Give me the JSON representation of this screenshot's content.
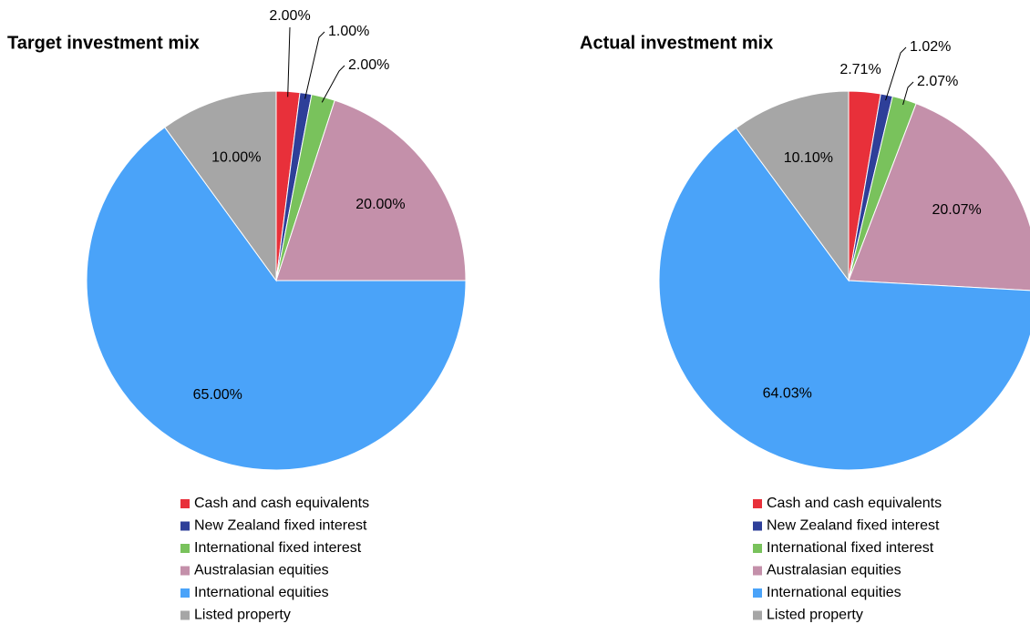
{
  "chart_data": [
    {
      "type": "pie",
      "title": "Target investment mix",
      "categories": [
        "Cash and cash equivalents",
        "New Zealand fixed interest",
        "International fixed interest",
        "Australasian equities",
        "International equities",
        "Listed property"
      ],
      "values": [
        2,
        1,
        2,
        20,
        65,
        10
      ],
      "value_labels": [
        "2.00%",
        "1.00%",
        "2.00%",
        "20.00%",
        "65.00%",
        "10.00%"
      ],
      "colors": [
        "#e8303a",
        "#2e3f99",
        "#79c25c",
        "#c490aa",
        "#4aa3f9",
        "#a6a6a6"
      ]
    },
    {
      "type": "pie",
      "title": "Actual investment mix",
      "categories": [
        "Cash and cash equivalents",
        "New Zealand fixed interest",
        "International fixed interest",
        "Australasian equities",
        "International equities",
        "Listed property"
      ],
      "values": [
        2.71,
        1.02,
        2.07,
        20.07,
        64.03,
        10.1
      ],
      "value_labels": [
        "2.71%",
        "1.02%",
        "2.07%",
        "20.07%",
        "64.03%",
        "10.10%"
      ],
      "colors": [
        "#e8303a",
        "#2e3f99",
        "#79c25c",
        "#c490aa",
        "#4aa3f9",
        "#a6a6a6"
      ]
    }
  ]
}
